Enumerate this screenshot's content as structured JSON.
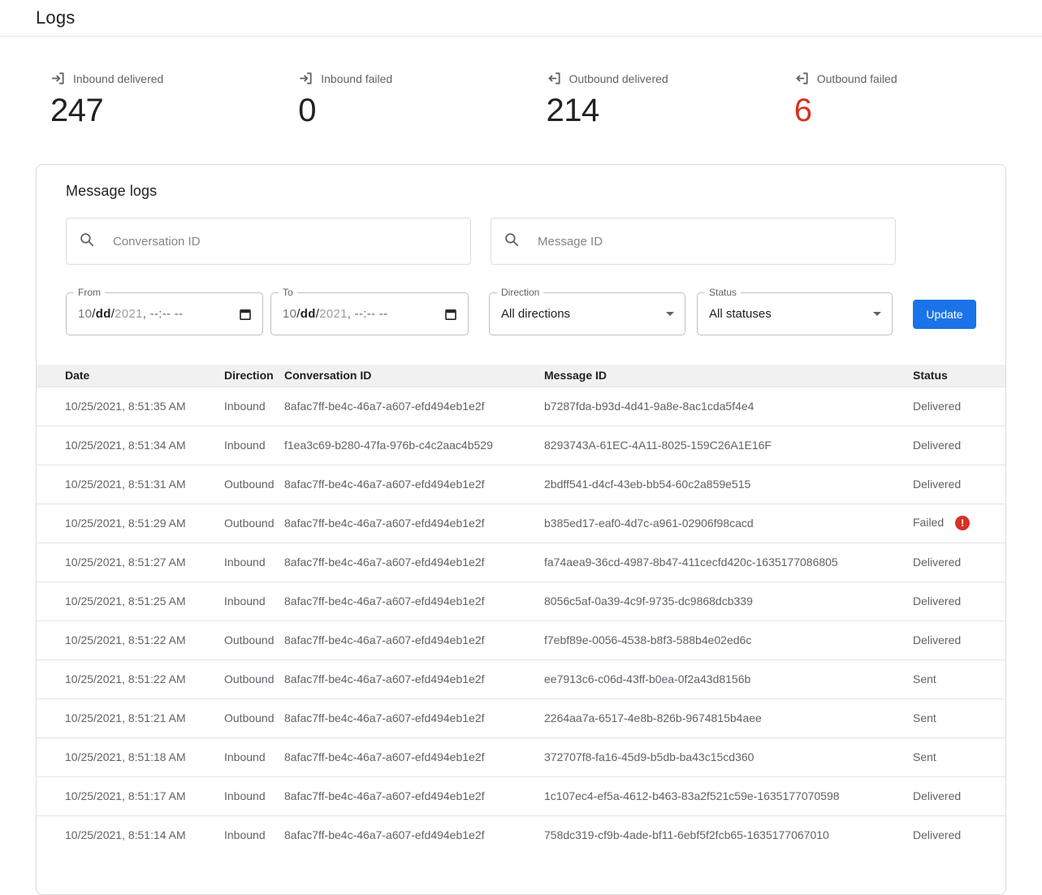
{
  "page": {
    "title": "Logs"
  },
  "colors": {
    "accent": "#1a73e8",
    "danger": "#d93025",
    "text_dark": "#202124",
    "text_gray": "#5f6368"
  },
  "stats": [
    {
      "label": "Inbound delivered",
      "value": "247",
      "icon": "inbound-icon",
      "value_color": "#202124"
    },
    {
      "label": "Inbound failed",
      "value": "0",
      "icon": "inbound-icon",
      "value_color": "#202124"
    },
    {
      "label": "Outbound delivered",
      "value": "214",
      "icon": "outbound-icon",
      "value_color": "#202124"
    },
    {
      "label": "Outbound failed",
      "value": "6",
      "icon": "outbound-icon",
      "value_color": "#d93025"
    }
  ],
  "filters": {
    "section_title": "Message logs",
    "conversation_placeholder": "Conversation ID",
    "message_placeholder": "Message ID",
    "from": {
      "label": "From",
      "month": "10",
      "day": "dd",
      "year": "2021",
      "rest": ", --:-- --"
    },
    "to": {
      "label": "To",
      "month": "10",
      "day": "dd",
      "year": "2021",
      "rest": ", --:-- --"
    },
    "direction": {
      "label": "Direction",
      "value": "All directions"
    },
    "status": {
      "label": "Status",
      "value": "All statuses"
    },
    "update_label": "Update"
  },
  "table": {
    "columns": [
      "Date",
      "Direction",
      "Conversation ID",
      "Message ID",
      "Status"
    ],
    "rows": [
      {
        "date": "10/25/2021, 8:51:35 AM",
        "direction": "Inbound",
        "conversation_id": "8afac7ff-be4c-46a7-a607-efd494eb1e2f",
        "message_id": "b7287fda-b93d-4d41-9a8e-8ac1cda5f4e4",
        "status": "Delivered"
      },
      {
        "date": "10/25/2021, 8:51:34 AM",
        "direction": "Inbound",
        "conversation_id": "f1ea3c69-b280-47fa-976b-c4c2aac4b529",
        "message_id": "8293743A-61EC-4A11-8025-159C26A1E16F",
        "status": "Delivered"
      },
      {
        "date": "10/25/2021, 8:51:31 AM",
        "direction": "Outbound",
        "conversation_id": "8afac7ff-be4c-46a7-a607-efd494eb1e2f",
        "message_id": "2bdff541-d4cf-43eb-bb54-60c2a859e515",
        "status": "Delivered"
      },
      {
        "date": "10/25/2021, 8:51:29 AM",
        "direction": "Outbound",
        "conversation_id": "8afac7ff-be4c-46a7-a607-efd494eb1e2f",
        "message_id": "b385ed17-eaf0-4d7c-a961-02906f98cacd",
        "status": "Failed"
      },
      {
        "date": "10/25/2021, 8:51:27 AM",
        "direction": "Inbound",
        "conversation_id": "8afac7ff-be4c-46a7-a607-efd494eb1e2f",
        "message_id": "fa74aea9-36cd-4987-8b47-411cecfd420c-1635177086805",
        "status": "Delivered"
      },
      {
        "date": "10/25/2021, 8:51:25 AM",
        "direction": "Inbound",
        "conversation_id": "8afac7ff-be4c-46a7-a607-efd494eb1e2f",
        "message_id": "8056c5af-0a39-4c9f-9735-dc9868dcb339",
        "status": "Delivered"
      },
      {
        "date": "10/25/2021, 8:51:22 AM",
        "direction": "Outbound",
        "conversation_id": "8afac7ff-be4c-46a7-a607-efd494eb1e2f",
        "message_id": "f7ebf89e-0056-4538-b8f3-588b4e02ed6c",
        "status": "Delivered"
      },
      {
        "date": "10/25/2021, 8:51:22 AM",
        "direction": "Outbound",
        "conversation_id": "8afac7ff-be4c-46a7-a607-efd494eb1e2f",
        "message_id": "ee7913c6-c06d-43ff-b0ea-0f2a43d8156b",
        "status": "Sent"
      },
      {
        "date": "10/25/2021, 8:51:21 AM",
        "direction": "Outbound",
        "conversation_id": "8afac7ff-be4c-46a7-a607-efd494eb1e2f",
        "message_id": "2264aa7a-6517-4e8b-826b-9674815b4aee",
        "status": "Sent"
      },
      {
        "date": "10/25/2021, 8:51:18 AM",
        "direction": "Inbound",
        "conversation_id": "8afac7ff-be4c-46a7-a607-efd494eb1e2f",
        "message_id": "372707f8-fa16-45d9-b5db-ba43c15cd360",
        "status": "Sent"
      },
      {
        "date": "10/25/2021, 8:51:17 AM",
        "direction": "Inbound",
        "conversation_id": "8afac7ff-be4c-46a7-a607-efd494eb1e2f",
        "message_id": "1c107ec4-ef5a-4612-b463-83a2f521c59e-1635177070598",
        "status": "Delivered"
      },
      {
        "date": "10/25/2021, 8:51:14 AM",
        "direction": "Inbound",
        "conversation_id": "8afac7ff-be4c-46a7-a607-efd494eb1e2f",
        "message_id": "758dc319-cf9b-4ade-bf11-6ebf5f2fcb65-1635177067010",
        "status": "Delivered"
      }
    ]
  }
}
